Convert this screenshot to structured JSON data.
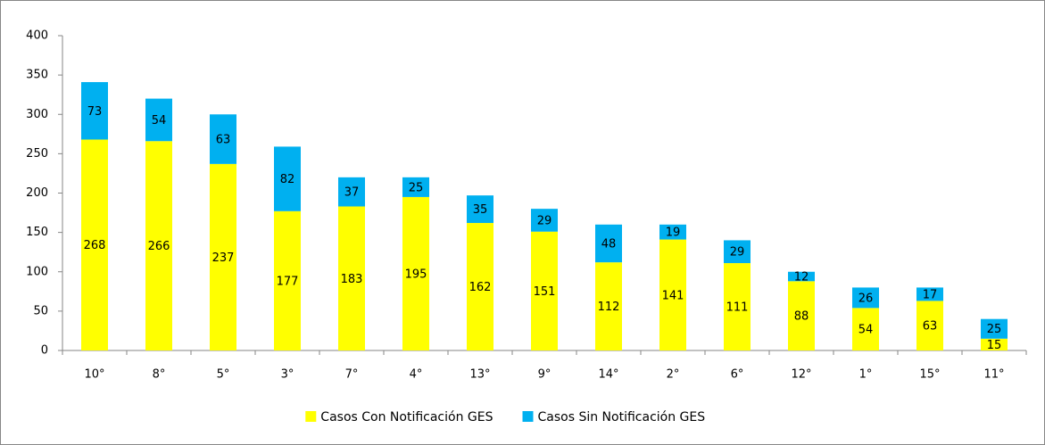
{
  "chart_data": {
    "type": "stacked_bar",
    "categories": [
      "10°",
      "8°",
      "5°",
      "3°",
      "7°",
      "4°",
      "13°",
      "9°",
      "14°",
      "2°",
      "6°",
      "12°",
      "1°",
      "15°",
      "11°"
    ],
    "series": [
      {
        "name": "Casos Con Notificación GES",
        "color": "#ffff00",
        "values": [
          268,
          266,
          237,
          177,
          183,
          195,
          162,
          151,
          112,
          141,
          111,
          88,
          54,
          63,
          15
        ]
      },
      {
        "name": "Casos Sin Notificación GES",
        "color": "#00b0f0",
        "values": [
          73,
          54,
          63,
          82,
          37,
          25,
          35,
          29,
          48,
          19,
          29,
          12,
          26,
          17,
          25
        ]
      }
    ],
    "ylim": [
      0,
      400
    ],
    "yticks": [
      0,
      50,
      100,
      150,
      200,
      250,
      300,
      350,
      400
    ],
    "grid": false,
    "legend": "bottom"
  }
}
